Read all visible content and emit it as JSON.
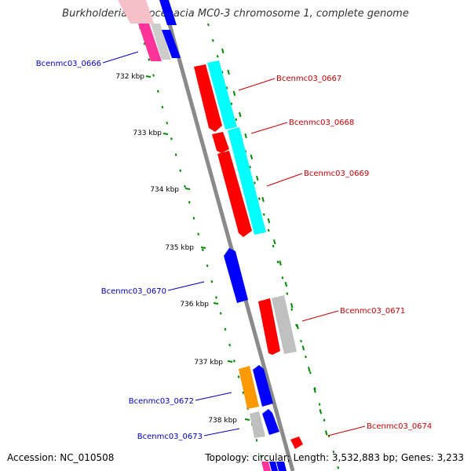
{
  "title": "Burkholderia cenocepacia MC0-3 chromosome 1, complete genome",
  "accession_text": "Accession: NC_010508",
  "summary_text": "Topology: circular; Length: 3,532,883 bp; Genes: 3,233",
  "ticks": [
    {
      "label": "732 kbp"
    },
    {
      "label": "733 kbp"
    },
    {
      "label": "734 kbp"
    },
    {
      "label": "735 kbp"
    },
    {
      "label": "736 kbp"
    },
    {
      "label": "737 kbp"
    },
    {
      "label": "738 kbp"
    }
  ],
  "genes": [
    {
      "name": "Bcenmc03_0666",
      "strand": "reverse",
      "color": "#0000cc"
    },
    {
      "name": "Bcenmc03_0667",
      "strand": "forward",
      "color": "#cc0000"
    },
    {
      "name": "Bcenmc03_0668",
      "strand": "forward",
      "color": "#cc0000"
    },
    {
      "name": "Bcenmc03_0669",
      "strand": "forward",
      "color": "#cc0000"
    },
    {
      "name": "Bcenmc03_0670",
      "strand": "reverse",
      "color": "#0000cc"
    },
    {
      "name": "Bcenmc03_0671",
      "strand": "forward",
      "color": "#cc0000"
    },
    {
      "name": "Bcenmc03_0672",
      "strand": "reverse",
      "color": "#0000cc"
    },
    {
      "name": "Bcenmc03_0673",
      "strand": "reverse",
      "color": "#0000cc"
    },
    {
      "name": "Bcenmc03_0674",
      "strand": "forward",
      "color": "#cc0000"
    }
  ],
  "colors": {
    "forward_cds": "#ff0000",
    "reverse_cds": "#0000ff",
    "cog_cyan": "#00ffff",
    "cog_gray": "#c0c0c0",
    "cog_orange": "#ff9900",
    "cog_pink": "#ff3399",
    "backbone": "#888888",
    "tick": "#008800"
  }
}
